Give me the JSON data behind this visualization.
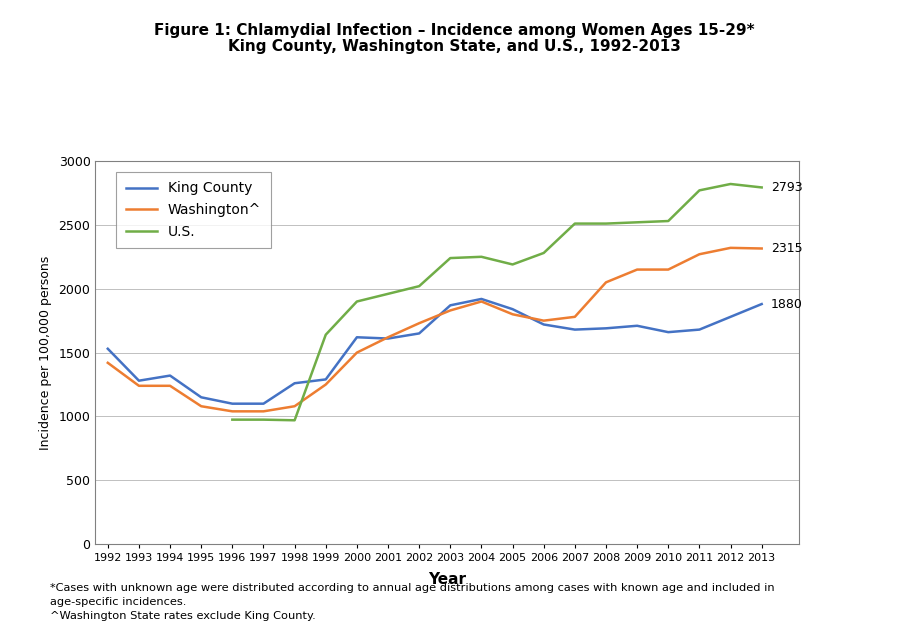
{
  "title_line1": "Figure 1: Chlamydial Infection – Incidence among Women Ages 15-29*",
  "title_line2": "King County, Washington State, and U.S., 1992-2013",
  "xlabel": "Year",
  "ylabel": "Incidence per 100,000 persons",
  "years": [
    1992,
    1993,
    1994,
    1995,
    1996,
    1997,
    1998,
    1999,
    2000,
    2001,
    2002,
    2003,
    2004,
    2005,
    2006,
    2007,
    2008,
    2009,
    2010,
    2011,
    2012,
    2013
  ],
  "king_county": [
    1530,
    1280,
    1320,
    1150,
    1100,
    1100,
    1260,
    1290,
    1620,
    1610,
    1650,
    1870,
    1920,
    1840,
    1720,
    1680,
    1690,
    1710,
    1660,
    1680,
    1780,
    1880
  ],
  "washington": [
    1420,
    1240,
    1240,
    1080,
    1040,
    1040,
    1080,
    1250,
    1500,
    1620,
    1730,
    1830,
    1900,
    1800,
    1750,
    1780,
    2050,
    2150,
    2150,
    2270,
    2320,
    2315
  ],
  "us": [
    null,
    null,
    null,
    null,
    975,
    975,
    970,
    1640,
    1900,
    1960,
    2020,
    2240,
    2250,
    2190,
    2280,
    2510,
    2510,
    2520,
    2530,
    2770,
    2820,
    2793
  ],
  "king_color": "#4472C4",
  "washington_color": "#ED7D31",
  "us_color": "#70AD47",
  "ylim": [
    0,
    3000
  ],
  "yticks": [
    0,
    500,
    1000,
    1500,
    2000,
    2500,
    3000
  ],
  "footnote_line1": "*Cases with unknown age were distributed according to annual age distributions among cases with known age and included in",
  "footnote_line2": "age-specific incidences.",
  "footnote_line3": "^Washington State rates exclude King County.",
  "end_labels": {
    "king_county": "1880",
    "washington": "2315",
    "us": "2793"
  },
  "background_color": "#ffffff",
  "plot_bg_color": "#ffffff",
  "grid_color": "#c0c0c0",
  "border_color": "#808080",
  "font_family": "Arial"
}
